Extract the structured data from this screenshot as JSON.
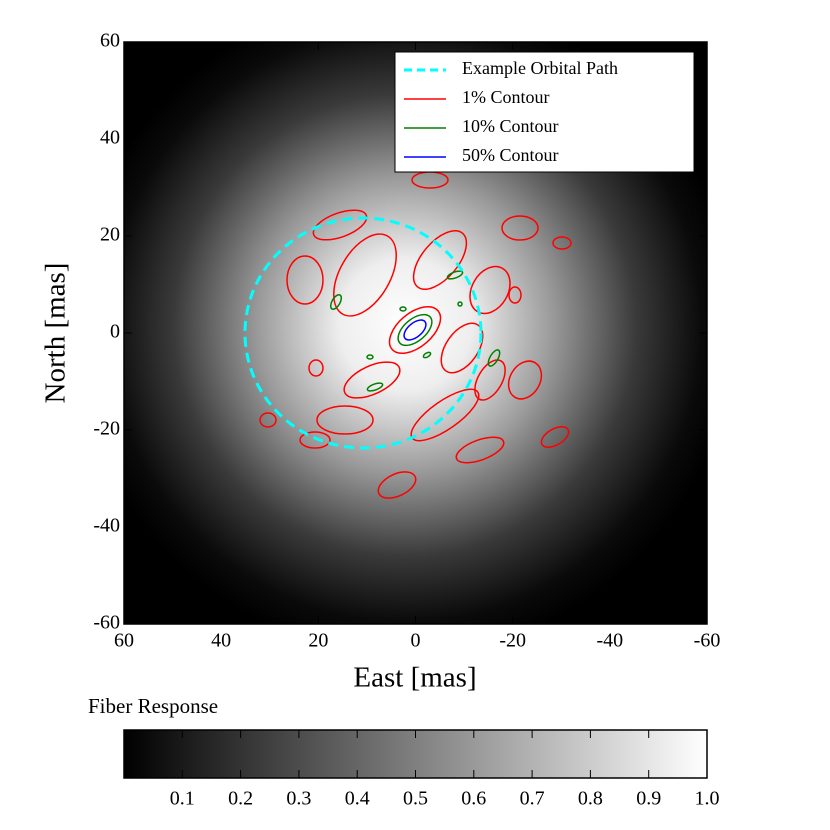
{
  "chart_data": {
    "type": "contour",
    "xlabel": "East [mas]",
    "ylabel": "North [mas]",
    "xlim": [
      60,
      -60
    ],
    "xticks": [
      60,
      40,
      20,
      0,
      -20,
      -40,
      -60
    ],
    "ylim": [
      -60,
      60
    ],
    "yticks": [
      -60,
      -40,
      -20,
      0,
      20,
      40,
      60
    ],
    "series": [
      {
        "name": "Example Orbital Path",
        "color": "#00ffff"
      },
      {
        "name": "1% Contour",
        "color": "#ff0000"
      },
      {
        "name": "10% Contour",
        "color": "#008000"
      },
      {
        "name": "50% Contour",
        "color": "#0000ff"
      }
    ],
    "colorbar": {
      "label": "Fiber Response",
      "clim": [
        0,
        1
      ],
      "ticks": [
        0.1,
        0.2,
        0.3,
        0.4,
        0.5,
        0.6,
        0.7,
        0.8,
        0.9,
        {
          "value": 1,
          "label": "1.0"
        }
      ]
    }
  }
}
